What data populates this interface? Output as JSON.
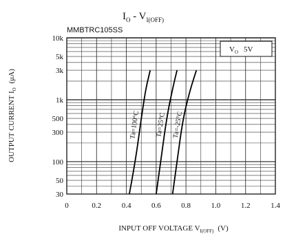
{
  "chart_data": {
    "type": "line",
    "title_main": "I",
    "title_main_sub": "O",
    "title_dash": " - V",
    "title_dash_sub": "I(OFF)",
    "subtitle": "MMBTRC105SS",
    "xlabel_main": "INPUT OFF VOLTAGE V",
    "xlabel_sub": "I(OFF)",
    "xlabel_unit": "(V)",
    "ylabel_main": "OUTPUT CURRENT I",
    "ylabel_sub": "O",
    "ylabel_unit": "(μA)",
    "condition_main": "V",
    "condition_sub": "O",
    "condition_value": "5V",
    "x_scale": "linear",
    "y_scale": "log",
    "xlim": [
      0,
      1.4
    ],
    "ylim": [
      30,
      10000
    ],
    "x_ticks": [
      {
        "value": 0,
        "label": "0"
      },
      {
        "value": 0.2,
        "label": "0.2"
      },
      {
        "value": 0.4,
        "label": "0.4"
      },
      {
        "value": 0.6,
        "label": "0.6"
      },
      {
        "value": 0.8,
        "label": "0.8"
      },
      {
        "value": 1.0,
        "label": "1.0"
      },
      {
        "value": 1.2,
        "label": "1.2"
      },
      {
        "value": 1.4,
        "label": "1.4"
      }
    ],
    "y_ticks": [
      {
        "value": 10000,
        "label": "10k"
      },
      {
        "value": 5000,
        "label": "5k"
      },
      {
        "value": 3000,
        "label": "3k"
      },
      {
        "value": 1000,
        "label": "1k"
      },
      {
        "value": 500,
        "label": "500"
      },
      {
        "value": 300,
        "label": "300"
      },
      {
        "value": 100,
        "label": "100"
      },
      {
        "value": 50,
        "label": "50"
      },
      {
        "value": 30,
        "label": "30"
      }
    ],
    "grid": true,
    "series": [
      {
        "name": "Ta=100°C",
        "x": [
          0.42,
          0.46,
          0.5,
          0.53,
          0.56
        ],
        "y": [
          30,
          100,
          500,
          1500,
          3000
        ]
      },
      {
        "name": "Ta=25°C",
        "x": [
          0.6,
          0.63,
          0.67,
          0.71,
          0.74
        ],
        "y": [
          30,
          100,
          500,
          1500,
          3000
        ]
      },
      {
        "name": "Ta=-25°C",
        "x": [
          0.71,
          0.74,
          0.78,
          0.83,
          0.87
        ],
        "y": [
          30,
          100,
          500,
          1500,
          3000
        ]
      }
    ]
  }
}
